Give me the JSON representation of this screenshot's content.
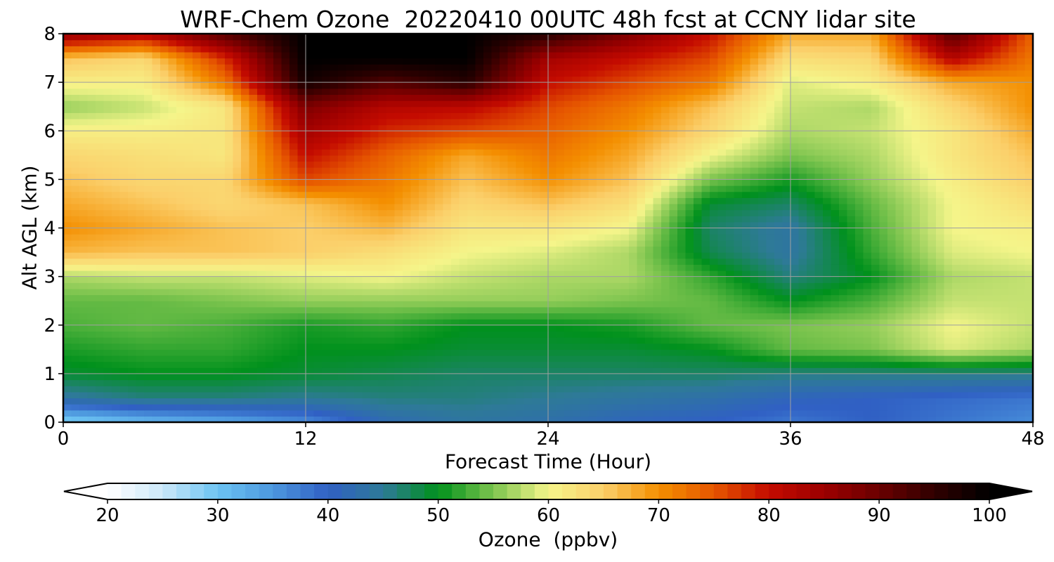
{
  "chart_data": {
    "type": "heatmap",
    "title": "WRF-Chem Ozone  20220410 00UTC 48h fcst at CCNY lidar site",
    "xlabel": "Forecast Time (Hour)",
    "ylabel": "Alt AGL (km)",
    "xlim": [
      0,
      48
    ],
    "ylim": [
      0,
      8
    ],
    "x_ticks": [
      0,
      12,
      24,
      36,
      48
    ],
    "y_ticks": [
      0,
      1,
      2,
      3,
      4,
      5,
      6,
      7,
      8
    ],
    "grid": true,
    "x": [
      0,
      4,
      8,
      12,
      16,
      20,
      24,
      28,
      32,
      36,
      40,
      44,
      48
    ],
    "y": [
      0,
      0.5,
      1,
      1.5,
      2,
      2.5,
      3,
      3.5,
      4,
      4.5,
      5,
      5.5,
      6,
      6.5,
      7,
      7.5,
      8
    ],
    "values": [
      [
        28,
        31,
        33,
        36,
        42,
        44,
        43,
        41,
        40,
        38,
        40,
        38,
        36
      ],
      [
        44,
        46,
        46,
        45,
        46,
        46,
        45,
        44,
        43,
        41,
        40,
        39,
        38
      ],
      [
        49,
        50,
        50,
        49,
        48,
        47,
        47,
        47,
        47,
        46,
        46,
        46,
        46
      ],
      [
        51,
        52,
        52,
        50,
        50,
        49,
        49,
        49,
        50,
        54,
        55,
        59,
        57
      ],
      [
        53,
        54,
        53,
        51,
        52,
        50,
        50,
        51,
        54,
        55,
        56,
        60,
        58
      ],
      [
        54,
        54,
        55,
        56,
        56,
        56,
        56,
        55,
        54,
        50,
        53,
        58,
        58
      ],
      [
        57,
        58,
        58,
        59,
        60,
        58,
        57,
        57,
        52,
        46,
        50,
        57,
        58
      ],
      [
        67,
        66,
        66,
        65,
        63,
        60,
        59,
        57,
        48,
        44,
        52,
        59,
        60
      ],
      [
        70,
        68,
        66,
        65,
        67,
        62,
        62,
        60,
        47,
        44,
        53,
        60,
        61
      ],
      [
        68,
        66,
        64,
        66,
        70,
        64,
        66,
        63,
        49,
        47,
        54,
        60,
        63
      ],
      [
        66,
        64,
        64,
        76,
        72,
        66,
        70,
        66,
        55,
        51,
        56,
        61,
        65
      ],
      [
        64,
        63,
        62,
        80,
        74,
        68,
        72,
        68,
        60,
        55,
        57,
        62,
        66
      ],
      [
        61,
        61,
        62,
        84,
        78,
        76,
        74,
        70,
        64,
        57,
        58,
        62,
        68
      ],
      [
        56,
        58,
        62,
        88,
        82,
        81,
        76,
        72,
        66,
        58,
        57,
        64,
        70
      ],
      [
        61,
        61,
        72,
        98,
        92,
        96,
        80,
        76,
        72,
        59,
        61,
        68,
        70
      ],
      [
        66,
        64,
        78,
        100,
        100,
        100,
        84,
        80,
        76,
        63,
        64,
        82,
        72
      ],
      [
        86,
        82,
        92,
        100,
        100,
        100,
        96,
        88,
        80,
        68,
        68,
        92,
        74
      ]
    ],
    "colorbar": {
      "label": "Ozone  (ppbv)",
      "min": 20,
      "max": 100,
      "ticks": [
        20,
        30,
        40,
        50,
        60,
        70,
        80,
        90,
        100
      ],
      "extend": "both",
      "colors": {
        "20": "#ffffff",
        "25": "#cbe8f9",
        "30": "#6cc3f2",
        "35": "#4c97de",
        "40": "#3060c4",
        "45": "#2e7a97",
        "50": "#00911c",
        "55": "#7cc44e",
        "60": "#f5f58a",
        "65": "#fbcf6a",
        "70": "#f48f00",
        "75": "#e65600",
        "80": "#c40b00",
        "85": "#9c0000",
        "90": "#6a0000",
        "95": "#300000",
        "100": "#000000"
      }
    }
  }
}
